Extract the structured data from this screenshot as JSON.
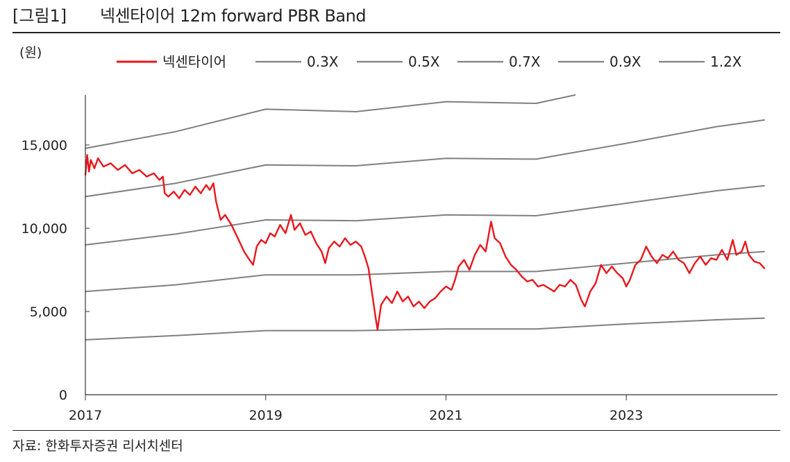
{
  "header": {
    "figure_label": "[그림1]",
    "title": "넥센타이어  12m forward PBR Band"
  },
  "unit_label": "(원)",
  "source": "자료: 한화투자증권 리서치센터",
  "colors": {
    "price": "#e8161b",
    "band": "#7f7f7f",
    "axis": "#333333"
  },
  "chart_data": {
    "type": "line",
    "title": "넥센타이어 12m forward PBR Band",
    "ylabel": "(원)",
    "xlabel": "",
    "xlim": [
      2017.0,
      2024.6
    ],
    "ylim": [
      0,
      18000
    ],
    "xticks": [
      {
        "value": 2017,
        "label": "2017"
      },
      {
        "value": 2019,
        "label": "2019"
      },
      {
        "value": 2021,
        "label": "2021"
      },
      {
        "value": 2023,
        "label": "2023"
      }
    ],
    "yticks": [
      {
        "value": 0,
        "label": "0"
      },
      {
        "value": 5000,
        "label": "5,000"
      },
      {
        "value": 10000,
        "label": "10,000"
      },
      {
        "value": 15000,
        "label": "15,000"
      }
    ],
    "legend_position": "top",
    "series": [
      {
        "name": "넥센타이어",
        "kind": "price",
        "points": [
          [
            2017.0,
            13200
          ],
          [
            2017.02,
            14400
          ],
          [
            2017.04,
            13400
          ],
          [
            2017.06,
            14100
          ],
          [
            2017.1,
            13600
          ],
          [
            2017.14,
            14200
          ],
          [
            2017.2,
            13700
          ],
          [
            2017.28,
            13900
          ],
          [
            2017.36,
            13500
          ],
          [
            2017.44,
            13800
          ],
          [
            2017.52,
            13300
          ],
          [
            2017.6,
            13500
          ],
          [
            2017.68,
            13100
          ],
          [
            2017.76,
            13300
          ],
          [
            2017.82,
            12900
          ],
          [
            2017.86,
            13100
          ],
          [
            2017.88,
            12100
          ],
          [
            2017.92,
            11900
          ],
          [
            2017.98,
            12200
          ],
          [
            2018.04,
            11800
          ],
          [
            2018.1,
            12300
          ],
          [
            2018.16,
            12000
          ],
          [
            2018.22,
            12500
          ],
          [
            2018.28,
            12100
          ],
          [
            2018.34,
            12600
          ],
          [
            2018.38,
            12300
          ],
          [
            2018.42,
            12700
          ],
          [
            2018.45,
            11600
          ],
          [
            2018.5,
            10500
          ],
          [
            2018.55,
            10800
          ],
          [
            2018.62,
            10200
          ],
          [
            2018.7,
            9300
          ],
          [
            2018.76,
            8600
          ],
          [
            2018.82,
            8100
          ],
          [
            2018.86,
            7800
          ],
          [
            2018.9,
            8900
          ],
          [
            2018.95,
            9300
          ],
          [
            2019.0,
            9100
          ],
          [
            2019.05,
            9700
          ],
          [
            2019.1,
            9500
          ],
          [
            2019.16,
            10200
          ],
          [
            2019.22,
            9700
          ],
          [
            2019.28,
            10800
          ],
          [
            2019.32,
            9900
          ],
          [
            2019.38,
            10300
          ],
          [
            2019.44,
            9600
          ],
          [
            2019.5,
            9800
          ],
          [
            2019.56,
            9100
          ],
          [
            2019.62,
            8600
          ],
          [
            2019.66,
            7900
          ],
          [
            2019.7,
            8800
          ],
          [
            2019.76,
            9200
          ],
          [
            2019.82,
            8900
          ],
          [
            2019.88,
            9400
          ],
          [
            2019.94,
            9000
          ],
          [
            2020.0,
            9200
          ],
          [
            2020.06,
            8900
          ],
          [
            2020.1,
            8300
          ],
          [
            2020.14,
            7600
          ],
          [
            2020.18,
            6100
          ],
          [
            2020.22,
            4600
          ],
          [
            2020.24,
            3900
          ],
          [
            2020.28,
            5400
          ],
          [
            2020.34,
            5900
          ],
          [
            2020.4,
            5500
          ],
          [
            2020.46,
            6200
          ],
          [
            2020.52,
            5600
          ],
          [
            2020.58,
            5900
          ],
          [
            2020.64,
            5300
          ],
          [
            2020.7,
            5600
          ],
          [
            2020.76,
            5200
          ],
          [
            2020.82,
            5600
          ],
          [
            2020.88,
            5800
          ],
          [
            2020.94,
            6200
          ],
          [
            2021.0,
            6500
          ],
          [
            2021.06,
            6300
          ],
          [
            2021.1,
            6900
          ],
          [
            2021.14,
            7700
          ],
          [
            2021.2,
            8100
          ],
          [
            2021.26,
            7500
          ],
          [
            2021.32,
            8400
          ],
          [
            2021.38,
            9000
          ],
          [
            2021.44,
            8600
          ],
          [
            2021.5,
            10400
          ],
          [
            2021.54,
            9400
          ],
          [
            2021.6,
            9100
          ],
          [
            2021.66,
            8300
          ],
          [
            2021.72,
            7800
          ],
          [
            2021.78,
            7500
          ],
          [
            2021.84,
            7100
          ],
          [
            2021.9,
            6800
          ],
          [
            2021.96,
            6900
          ],
          [
            2022.02,
            6500
          ],
          [
            2022.08,
            6600
          ],
          [
            2022.14,
            6400
          ],
          [
            2022.2,
            6200
          ],
          [
            2022.26,
            6600
          ],
          [
            2022.32,
            6500
          ],
          [
            2022.38,
            6900
          ],
          [
            2022.44,
            6600
          ],
          [
            2022.5,
            5700
          ],
          [
            2022.54,
            5300
          ],
          [
            2022.6,
            6200
          ],
          [
            2022.66,
            6700
          ],
          [
            2022.72,
            7800
          ],
          [
            2022.78,
            7300
          ],
          [
            2022.84,
            7700
          ],
          [
            2022.9,
            7300
          ],
          [
            2022.96,
            7000
          ],
          [
            2023.0,
            6500
          ],
          [
            2023.04,
            6900
          ],
          [
            2023.1,
            7800
          ],
          [
            2023.16,
            8100
          ],
          [
            2023.22,
            8900
          ],
          [
            2023.28,
            8300
          ],
          [
            2023.34,
            7900
          ],
          [
            2023.4,
            8400
          ],
          [
            2023.46,
            8200
          ],
          [
            2023.52,
            8600
          ],
          [
            2023.58,
            8100
          ],
          [
            2023.64,
            7900
          ],
          [
            2023.7,
            7300
          ],
          [
            2023.76,
            7900
          ],
          [
            2023.82,
            8300
          ],
          [
            2023.88,
            7800
          ],
          [
            2023.94,
            8200
          ],
          [
            2024.0,
            8100
          ],
          [
            2024.06,
            8700
          ],
          [
            2024.12,
            8100
          ],
          [
            2024.18,
            9300
          ],
          [
            2024.22,
            8400
          ],
          [
            2024.28,
            8600
          ],
          [
            2024.32,
            9200
          ],
          [
            2024.36,
            8400
          ],
          [
            2024.42,
            8000
          ],
          [
            2024.48,
            7900
          ],
          [
            2024.53,
            7600
          ]
        ]
      },
      {
        "name": "0.3X",
        "kind": "band",
        "points": [
          [
            2017.0,
            3300
          ],
          [
            2018.0,
            3550
          ],
          [
            2019.0,
            3850
          ],
          [
            2020.0,
            3850
          ],
          [
            2021.0,
            3950
          ],
          [
            2022.0,
            3950
          ],
          [
            2023.0,
            4250
          ],
          [
            2024.0,
            4500
          ],
          [
            2024.53,
            4600
          ]
        ]
      },
      {
        "name": "0.5X",
        "kind": "band",
        "points": [
          [
            2017.0,
            6200
          ],
          [
            2018.0,
            6600
          ],
          [
            2019.0,
            7200
          ],
          [
            2020.0,
            7200
          ],
          [
            2021.0,
            7400
          ],
          [
            2022.0,
            7400
          ],
          [
            2023.0,
            7900
          ],
          [
            2024.0,
            8400
          ],
          [
            2024.53,
            8600
          ]
        ]
      },
      {
        "name": "0.7X",
        "kind": "band",
        "points": [
          [
            2017.0,
            9000
          ],
          [
            2018.0,
            9650
          ],
          [
            2019.0,
            10500
          ],
          [
            2020.0,
            10450
          ],
          [
            2021.0,
            10800
          ],
          [
            2022.0,
            10750
          ],
          [
            2023.0,
            11500
          ],
          [
            2024.0,
            12250
          ],
          [
            2024.53,
            12550
          ]
        ]
      },
      {
        "name": "0.9X",
        "kind": "band",
        "points": [
          [
            2017.0,
            11900
          ],
          [
            2018.0,
            12700
          ],
          [
            2019.0,
            13800
          ],
          [
            2020.0,
            13750
          ],
          [
            2021.0,
            14200
          ],
          [
            2022.0,
            14150
          ],
          [
            2023.0,
            15100
          ],
          [
            2024.0,
            16100
          ],
          [
            2024.53,
            16500
          ]
        ]
      },
      {
        "name": "1.2X",
        "kind": "band",
        "points": [
          [
            2017.0,
            14800
          ],
          [
            2018.0,
            15800
          ],
          [
            2019.0,
            17150
          ],
          [
            2020.0,
            17000
          ],
          [
            2021.0,
            17600
          ],
          [
            2022.0,
            17500
          ],
          [
            2022.43,
            18000
          ]
        ]
      }
    ]
  }
}
